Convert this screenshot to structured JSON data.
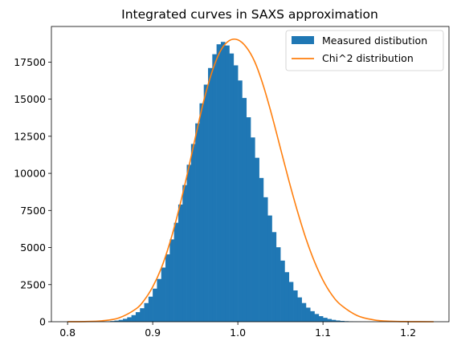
{
  "chart_data": {
    "type": "bar",
    "title": "Integrated curves in SAXS approximation",
    "xlabel": "",
    "ylabel": "",
    "xlim": [
      0.781,
      1.248
    ],
    "ylim": [
      0,
      19900
    ],
    "xticks": [
      0.8,
      0.9,
      1.0,
      1.1,
      1.2
    ],
    "xtick_labels": [
      "0.8",
      "0.9",
      "1.0",
      "1.1",
      "1.2"
    ],
    "yticks": [
      0,
      2500,
      5000,
      7500,
      10000,
      12500,
      15000,
      17500
    ],
    "ytick_labels": [
      "0",
      "2500",
      "5000",
      "7500",
      "10000",
      "12500",
      "15000",
      "17500"
    ],
    "legend_position": "top-right",
    "grid": false,
    "series": [
      {
        "name": "Measured distibution",
        "type": "histogram",
        "color": "#1f77b4",
        "bin_start": 0.8,
        "bin_width": 0.005,
        "values": [
          0,
          0,
          0,
          0,
          1,
          2,
          4,
          8,
          15,
          27,
          46,
          77,
          125,
          197,
          300,
          445,
          645,
          910,
          1255,
          1690,
          2230,
          2880,
          3650,
          4540,
          5550,
          6670,
          7900,
          9210,
          10580,
          11980,
          13370,
          14720,
          15980,
          17100,
          18030,
          18700,
          18860,
          18620,
          18080,
          17280,
          16260,
          15080,
          13780,
          12420,
          11050,
          9690,
          8390,
          7160,
          6040,
          5020,
          4120,
          3340,
          2680,
          2110,
          1640,
          1260,
          950,
          710,
          520,
          375,
          265,
          185,
          126,
          84,
          55,
          36,
          23,
          14,
          9,
          5,
          3,
          2,
          1,
          1,
          0,
          0,
          0,
          0,
          0,
          0,
          0,
          0,
          0,
          0,
          0,
          0
        ]
      },
      {
        "name": "Chi^2 distribution",
        "type": "line",
        "color": "#ff7f0e",
        "x": [
          0.8,
          0.82,
          0.84,
          0.86,
          0.88,
          0.89,
          0.9,
          0.91,
          0.92,
          0.93,
          0.94,
          0.95,
          0.96,
          0.97,
          0.98,
          0.99,
          1.0,
          1.01,
          1.02,
          1.03,
          1.04,
          1.05,
          1.06,
          1.07,
          1.08,
          1.09,
          1.1,
          1.11,
          1.12,
          1.14,
          1.16,
          1.18,
          1.2,
          1.23
        ],
        "y": [
          0,
          10,
          60,
          250,
          850,
          1450,
          2350,
          3600,
          5300,
          7400,
          9800,
          12400,
          14900,
          16900,
          18300,
          18950,
          19000,
          18500,
          17500,
          15900,
          13900,
          11700,
          9500,
          7450,
          5600,
          4050,
          2800,
          1850,
          1180,
          420,
          120,
          30,
          6,
          0
        ]
      }
    ]
  }
}
